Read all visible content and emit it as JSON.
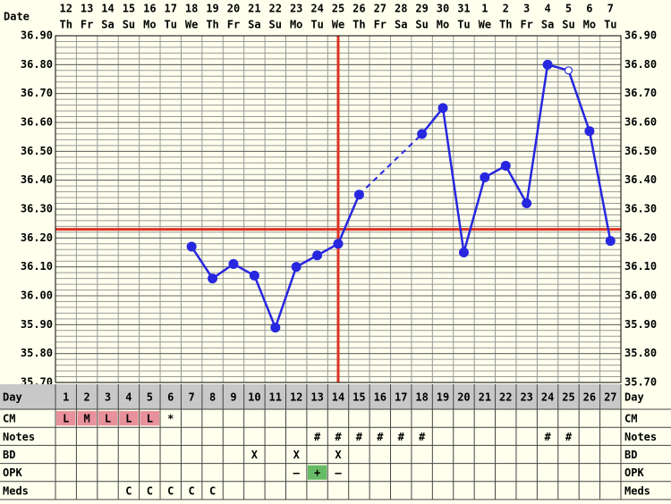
{
  "chart_data": {
    "type": "line",
    "date_label": "Date",
    "dates": [
      12,
      13,
      14,
      15,
      16,
      17,
      18,
      19,
      20,
      21,
      22,
      23,
      24,
      25,
      26,
      27,
      28,
      29,
      30,
      31,
      1,
      2,
      3,
      4,
      5,
      6,
      7
    ],
    "weekdays": [
      "Th",
      "Fr",
      "Sa",
      "Su",
      "Mo",
      "Tu",
      "We",
      "Th",
      "Fr",
      "Sa",
      "Su",
      "Mo",
      "Tu",
      "We",
      "Th",
      "Fr",
      "Sa",
      "Su",
      "Mo",
      "Tu",
      "We",
      "Th",
      "Fr",
      "Sa",
      "Su",
      "Mo",
      "Tu"
    ],
    "day_label": "Day",
    "days": [
      1,
      2,
      3,
      4,
      5,
      6,
      7,
      8,
      9,
      10,
      11,
      12,
      13,
      14,
      15,
      16,
      17,
      18,
      19,
      20,
      21,
      22,
      23,
      24,
      25,
      26,
      27
    ],
    "values": [
      null,
      null,
      null,
      null,
      null,
      null,
      36.17,
      36.06,
      36.11,
      36.07,
      35.89,
      36.1,
      36.14,
      36.18,
      36.35,
      null,
      null,
      36.56,
      36.65,
      36.15,
      36.41,
      36.45,
      36.32,
      36.8,
      36.78,
      36.57,
      36.19
    ],
    "color": "#2727e0",
    "open_markers": [
      25
    ],
    "ylim": [
      35.7,
      36.9
    ],
    "yticks": [
      {
        "value": 35.7,
        "label": "35.70"
      },
      {
        "value": 35.8,
        "label": "35.80"
      },
      {
        "value": 35.9,
        "label": "35.90"
      },
      {
        "value": 36.0,
        "label": "36.00"
      },
      {
        "value": 36.1,
        "label": "36.10"
      },
      {
        "value": 36.2,
        "label": "36.20"
      },
      {
        "value": 36.3,
        "label": "36.30"
      },
      {
        "value": 36.4,
        "label": "36.40"
      },
      {
        "value": 36.5,
        "label": "36.50"
      },
      {
        "value": 36.6,
        "label": "36.60"
      },
      {
        "value": 36.7,
        "label": "36.70"
      },
      {
        "value": 36.8,
        "label": "36.80"
      },
      {
        "value": 36.9,
        "label": "36.90"
      }
    ],
    "grid": true,
    "coverline": 36.23,
    "ovulation_day": 14,
    "line_color": "#dd3322",
    "rows": [
      {
        "label": "CM",
        "cells": [
          "L",
          "M",
          "L",
          "L",
          "L",
          "*",
          null,
          null,
          null,
          null,
          null,
          null,
          null,
          null,
          null,
          null,
          null,
          null,
          null,
          null,
          null,
          null,
          null,
          null,
          null,
          null,
          null
        ],
        "fills": [
          "#e8909c",
          "#e8909c",
          "#e8909c",
          "#e8909c",
          "#e8909c",
          null,
          null,
          null,
          null,
          null,
          null,
          null,
          null,
          null,
          null,
          null,
          null,
          null,
          null,
          null,
          null,
          null,
          null,
          null,
          null,
          null,
          null
        ]
      },
      {
        "label": "Notes",
        "cells": [
          null,
          null,
          null,
          null,
          null,
          null,
          null,
          null,
          null,
          null,
          null,
          null,
          "#",
          "#",
          "#",
          "#",
          "#",
          "#",
          null,
          null,
          null,
          null,
          null,
          "#",
          "#",
          null,
          null
        ]
      },
      {
        "label": "BD",
        "cells": [
          null,
          null,
          null,
          null,
          null,
          null,
          null,
          null,
          null,
          "X",
          null,
          "X",
          null,
          "X",
          null,
          null,
          null,
          null,
          null,
          null,
          null,
          null,
          null,
          null,
          null,
          null,
          null
        ]
      },
      {
        "label": "OPK",
        "cells": [
          null,
          null,
          null,
          null,
          null,
          null,
          null,
          null,
          null,
          null,
          null,
          "–",
          "+",
          "–",
          null,
          null,
          null,
          null,
          null,
          null,
          null,
          null,
          null,
          null,
          null,
          null,
          null
        ],
        "fills": [
          null,
          null,
          null,
          null,
          null,
          null,
          null,
          null,
          null,
          null,
          null,
          null,
          "#66bb66",
          null,
          null,
          null,
          null,
          null,
          null,
          null,
          null,
          null,
          null,
          null,
          null,
          null,
          null
        ]
      },
      {
        "label": "Meds",
        "cells": [
          null,
          null,
          null,
          "C",
          "C",
          "C",
          "C",
          "C",
          null,
          null,
          null,
          null,
          null,
          null,
          null,
          null,
          null,
          null,
          null,
          null,
          null,
          null,
          null,
          null,
          null,
          null,
          null
        ]
      }
    ]
  }
}
